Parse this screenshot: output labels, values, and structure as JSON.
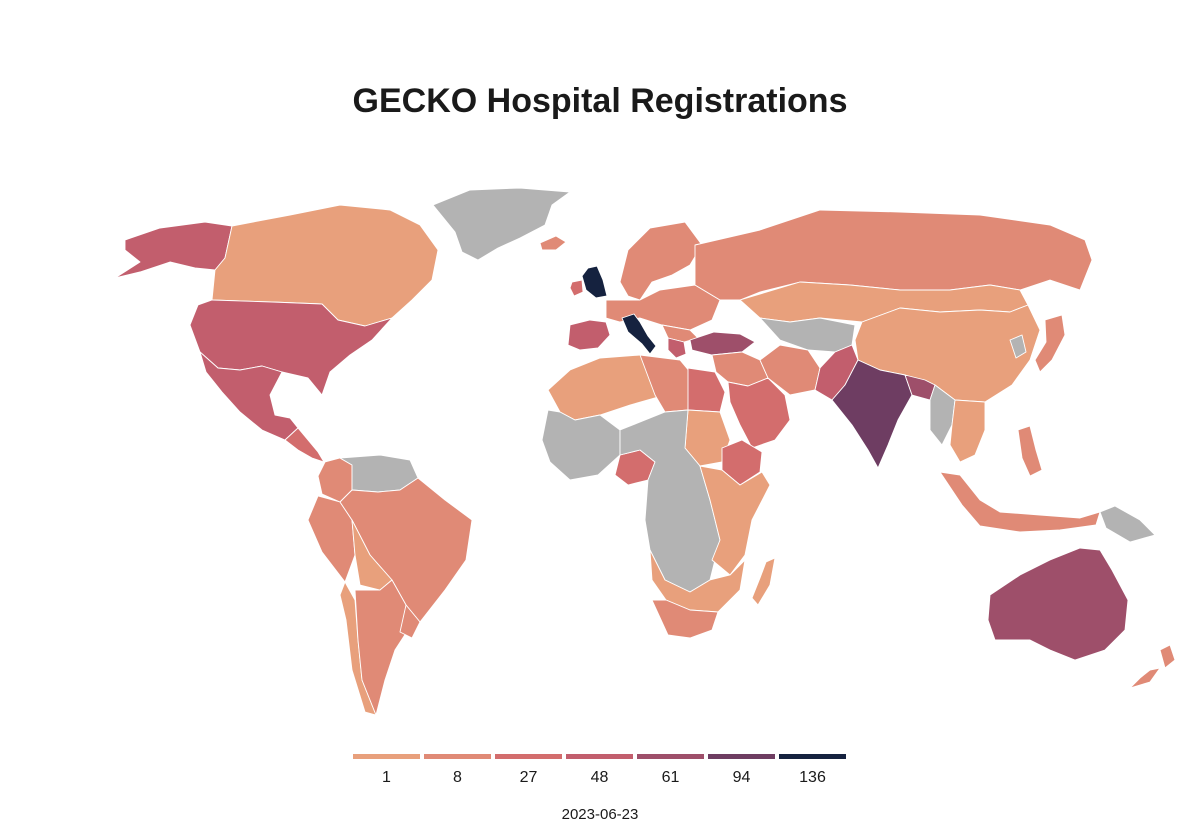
{
  "title": "GECKO Hospital Registrations",
  "date": "2023-06-23",
  "no_data_color": "#b3b3b3",
  "legend": [
    {
      "label": "1",
      "color": "#e8a07c"
    },
    {
      "label": "8",
      "color": "#e08a76"
    },
    {
      "label": "27",
      "color": "#d36d6d"
    },
    {
      "label": "48",
      "color": "#c25e6d"
    },
    {
      "label": "61",
      "color": "#9e4f6a"
    },
    {
      "label": "94",
      "color": "#6e3d62"
    },
    {
      "label": "136",
      "color": "#15223f"
    }
  ],
  "regions": [
    {
      "id": "greenland",
      "level": null
    },
    {
      "id": "alaska",
      "level": 3
    },
    {
      "id": "canada",
      "level": 0
    },
    {
      "id": "usa",
      "level": 3
    },
    {
      "id": "mexico",
      "level": 3
    },
    {
      "id": "central-america",
      "level": 2
    },
    {
      "id": "colombia",
      "level": 1
    },
    {
      "id": "venezuela-guianas",
      "level": null
    },
    {
      "id": "peru",
      "level": 1
    },
    {
      "id": "brazil",
      "level": 1
    },
    {
      "id": "bolivia-paraguay",
      "level": 0
    },
    {
      "id": "argentina",
      "level": 1
    },
    {
      "id": "chile",
      "level": 0
    },
    {
      "id": "uruguay",
      "level": 1
    },
    {
      "id": "iceland",
      "level": 1
    },
    {
      "id": "uk",
      "level": 6
    },
    {
      "id": "ireland",
      "level": 2
    },
    {
      "id": "scandinavia",
      "level": 1
    },
    {
      "id": "iberia",
      "level": 3
    },
    {
      "id": "france-central-europe",
      "level": 1
    },
    {
      "id": "italy",
      "level": 6
    },
    {
      "id": "balkans",
      "level": 1
    },
    {
      "id": "greece",
      "level": 3
    },
    {
      "id": "turkey",
      "level": 4
    },
    {
      "id": "russia",
      "level": 1
    },
    {
      "id": "kazakhstan-mongolia",
      "level": 0
    },
    {
      "id": "central-asia",
      "level": null
    },
    {
      "id": "china",
      "level": 0
    },
    {
      "id": "korea",
      "level": null
    },
    {
      "id": "japan",
      "level": 1
    },
    {
      "id": "middle-east",
      "level": 1
    },
    {
      "id": "saudi-arabia",
      "level": 2
    },
    {
      "id": "iran",
      "level": 1
    },
    {
      "id": "pakistan",
      "level": 3
    },
    {
      "id": "india",
      "level": 5
    },
    {
      "id": "bangladesh",
      "level": 4
    },
    {
      "id": "myanmar",
      "level": null
    },
    {
      "id": "southeast-asia",
      "level": 0
    },
    {
      "id": "indonesia",
      "level": 1
    },
    {
      "id": "papua",
      "level": null
    },
    {
      "id": "philippines",
      "level": 1
    },
    {
      "id": "north-africa",
      "level": 0
    },
    {
      "id": "libya",
      "level": 1
    },
    {
      "id": "egypt",
      "level": 2
    },
    {
      "id": "west-africa",
      "level": null
    },
    {
      "id": "nigeria",
      "level": 2
    },
    {
      "id": "central-africa",
      "level": null
    },
    {
      "id": "sudan",
      "level": 0
    },
    {
      "id": "ethiopia",
      "level": 2
    },
    {
      "id": "east-africa",
      "level": 0
    },
    {
      "id": "southern-africa",
      "level": 0
    },
    {
      "id": "south-africa",
      "level": 1
    },
    {
      "id": "madagascar",
      "level": 0
    },
    {
      "id": "australia",
      "level": 4
    },
    {
      "id": "new-zealand",
      "level": 1
    }
  ]
}
